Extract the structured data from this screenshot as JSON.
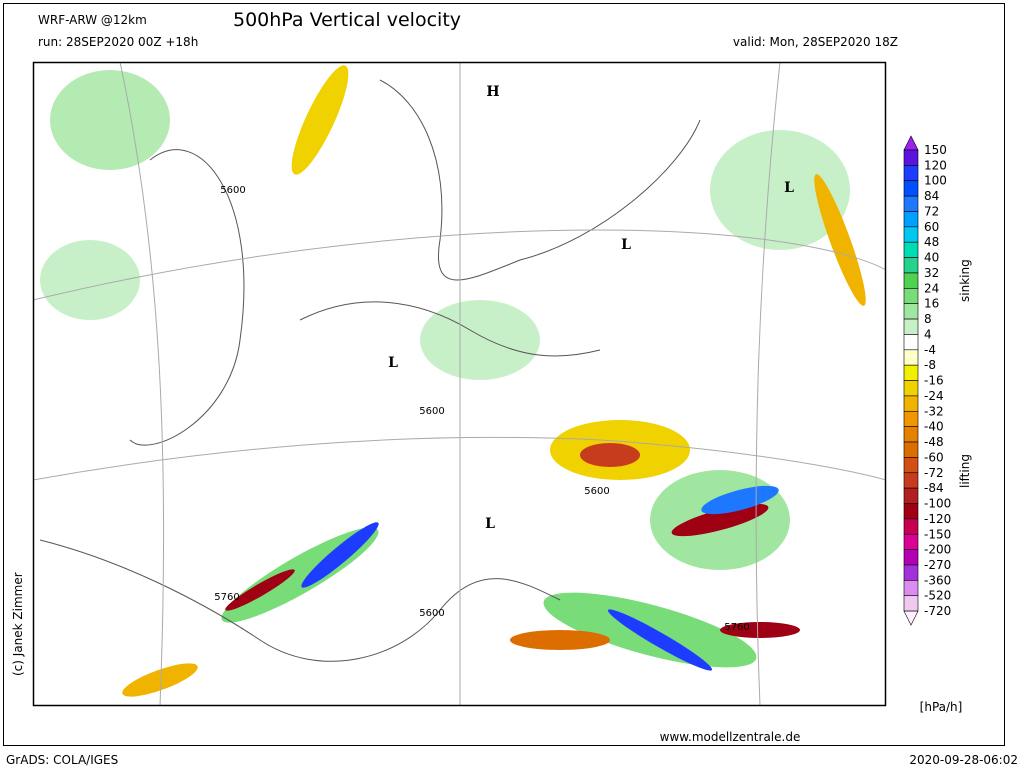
{
  "header": {
    "model": "WRF-ARW @12km",
    "title": "500hPa Vertical velocity",
    "run": "run: 28SEP2020 00Z +18h",
    "valid": "valid: Mon, 28SEP2020 18Z"
  },
  "map": {
    "pressure_labels": [
      "H",
      "L",
      "L",
      "L",
      "L"
    ],
    "contour_labels": [
      "5600",
      "5600",
      "5600",
      "5600",
      "5760",
      "5760"
    ],
    "credit": "(c) Janek Zimmer"
  },
  "colorbar": {
    "labels": [
      150,
      120,
      100,
      84,
      72,
      60,
      48,
      40,
      32,
      24,
      16,
      8,
      4,
      -4,
      -8,
      -16,
      -24,
      -32,
      -40,
      -48,
      -60,
      -72,
      -84,
      -100,
      -120,
      -150,
      -200,
      -270,
      -360,
      -520,
      -720
    ],
    "colors": [
      "#a020f0",
      "#5a14dc",
      "#1e3cff",
      "#0050ff",
      "#1e78ff",
      "#00a0ff",
      "#00c8f0",
      "#00dcb4",
      "#28d28c",
      "#50d250",
      "#78dc78",
      "#a0e6a0",
      "#c8f0c8",
      "#ffffff",
      "#ffffc8",
      "#f0f000",
      "#f0d200",
      "#f0b400",
      "#f09600",
      "#e68200",
      "#dc6e00",
      "#d25014",
      "#c83c1e",
      "#b41e1e",
      "#a00014",
      "#c80050",
      "#dc0096",
      "#b400b4",
      "#a032dc",
      "#dc8cf0",
      "#f0c8f0",
      "#fff0ff"
    ],
    "upper_label": "sinking",
    "lower_label": "lifting",
    "unit": "[hPa/h]"
  },
  "footer": {
    "website": "www.modellzentrale.de",
    "software": "GrADS: COLA/IGES",
    "timestamp": "2020-09-28-06:02"
  }
}
